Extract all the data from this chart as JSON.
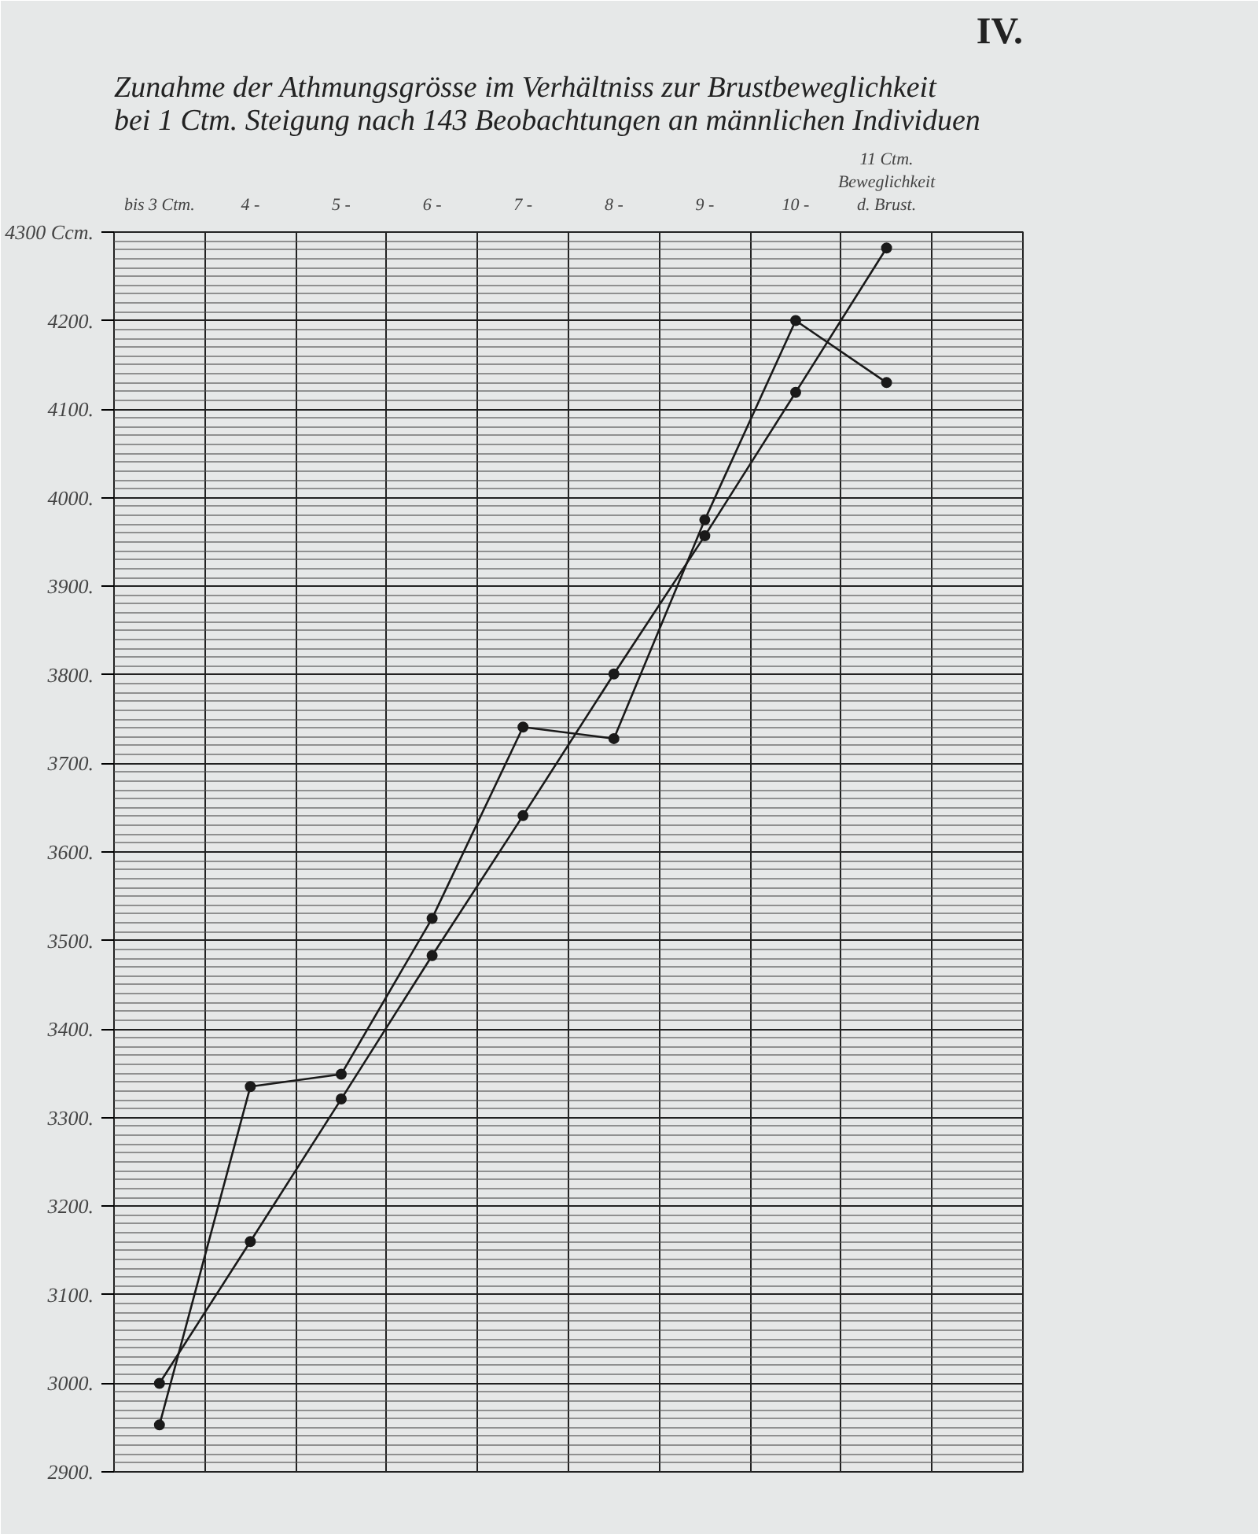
{
  "chart_data": {
    "type": "line",
    "title": "Zunahme der Athmungsgrösse im Verhältniss zur Brustbeweglichkeit\nbei 1 Ctm. Steigung nach 143 Beobachtungen an männlichen Individuen",
    "annotations": [
      "IV."
    ],
    "categories": [
      "bis 3 Ctm.",
      "4 -",
      "5 -",
      "6 -",
      "7 -",
      "8 -",
      "9 -",
      "10 -",
      "11 Ctm. Beweglichkeit d. Brust."
    ],
    "series": [
      {
        "color": "#1a1a1a",
        "values": [
          2953,
          3335,
          3349,
          3525,
          3741,
          3728,
          3975,
          4200,
          4130
        ]
      },
      {
        "color": "#1a1a1a",
        "values": [
          3000,
          3160,
          3321,
          3483,
          3641,
          3801,
          3957,
          4119,
          4282
        ]
      }
    ],
    "ylim": [
      2900,
      4300
    ],
    "yticks": [
      {
        "value": 2900,
        "label": "2900."
      },
      {
        "value": 3000,
        "label": "3000."
      },
      {
        "value": 3100,
        "label": "3100."
      },
      {
        "value": 3200,
        "label": "3200."
      },
      {
        "value": 3300,
        "label": "3300."
      },
      {
        "value": 3400,
        "label": "3400."
      },
      {
        "value": 3500,
        "label": "3500."
      },
      {
        "value": 3600,
        "label": "3600."
      },
      {
        "value": 3700,
        "label": "3700."
      },
      {
        "value": 3800,
        "label": "3800."
      },
      {
        "value": 3900,
        "label": "3900."
      },
      {
        "value": 4000,
        "label": "4000."
      },
      {
        "value": 4100,
        "label": "4100."
      },
      {
        "value": 4200,
        "label": "4200."
      },
      {
        "value": 4300,
        "label": "4300 Ccm."
      }
    ],
    "grid": true,
    "marker": "circle",
    "line_style": "solid"
  }
}
